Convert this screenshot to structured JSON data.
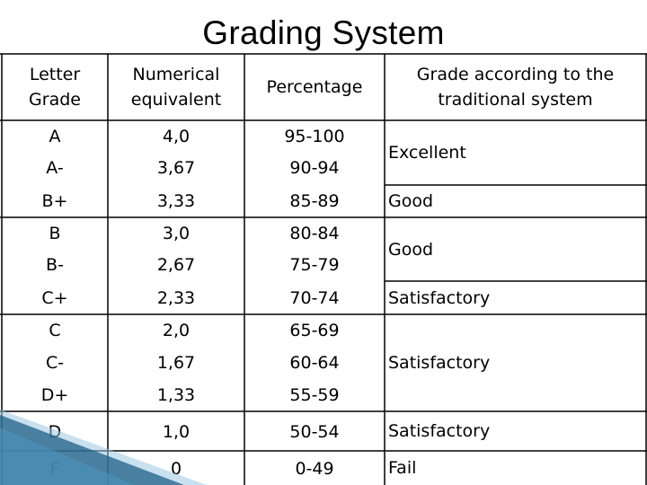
{
  "title": "Grading System",
  "headers": {
    "letter": "Letter Grade",
    "numeric": "Numerical equivalent",
    "percent": "Percentage",
    "traditional": "Grade according to the traditional system"
  },
  "rows": [
    {
      "letter": "A",
      "numeric": "4,0",
      "percent": "95-100"
    },
    {
      "letter": "A-",
      "numeric": "3,67",
      "percent": "90-94"
    },
    {
      "letter": "B+",
      "numeric": "3,33",
      "percent": "85-89"
    },
    {
      "letter": "B",
      "numeric": "3,0",
      "percent": "80-84"
    },
    {
      "letter": "B-",
      "numeric": "2,67",
      "percent": "75-79"
    },
    {
      "letter": "C+",
      "numeric": "2,33",
      "percent": "70-74"
    },
    {
      "letter": "C",
      "numeric": "2,0",
      "percent": "65-69"
    },
    {
      "letter": "C-",
      "numeric": "1,67",
      "percent": "60-64"
    },
    {
      "letter": "D+",
      "numeric": "1,33",
      "percent": "55-59"
    },
    {
      "letter": "D",
      "numeric": "1,0",
      "percent": "50-54"
    },
    {
      "letter": "F",
      "numeric": "0",
      "percent": "0-49"
    }
  ],
  "traditional": [
    {
      "label": "Excellent"
    },
    {
      "label": "Good"
    },
    {
      "label": "Good"
    },
    {
      "label": "Satisfactory"
    },
    {
      "label": "Satisfactory"
    },
    {
      "label": "Satisfactory"
    },
    {
      "label": "Fail"
    }
  ],
  "colors": {
    "decor_dark": "#1e5f86",
    "decor_light": "#9cc7e0"
  }
}
